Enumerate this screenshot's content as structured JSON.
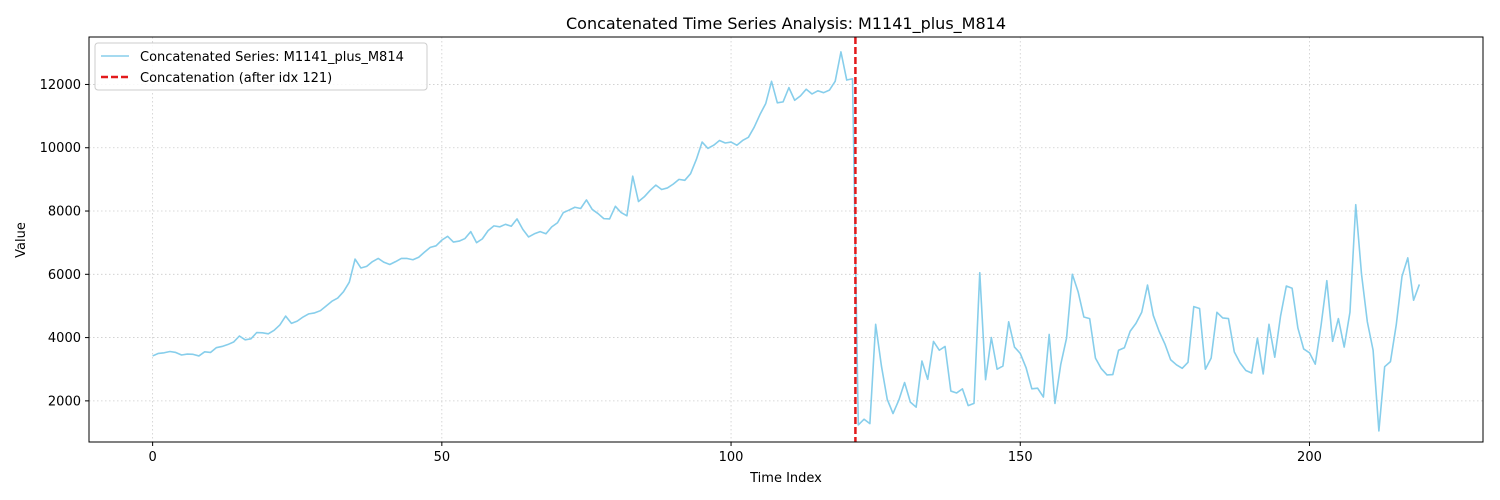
{
  "chart_data": {
    "type": "line",
    "title": "Concatenated Time Series Analysis: M1141_plus_M814",
    "xlabel": "Time Index",
    "ylabel": "Value",
    "xlim": [
      -11,
      230
    ],
    "ylim": [
      700,
      13500
    ],
    "xticks": [
      0,
      50,
      100,
      150,
      200
    ],
    "yticks": [
      2000,
      4000,
      6000,
      8000,
      10000,
      12000
    ],
    "grid": true,
    "legend_position": "top-left",
    "series": [
      {
        "name": "Concatenated Series: M1141_plus_M814",
        "color": "#87ceeb",
        "x": [
          0,
          1,
          2,
          3,
          4,
          5,
          6,
          7,
          8,
          9,
          10,
          11,
          12,
          13,
          14,
          15,
          16,
          17,
          18,
          19,
          20,
          21,
          22,
          23,
          24,
          25,
          26,
          27,
          28,
          29,
          30,
          31,
          32,
          33,
          34,
          35,
          36,
          37,
          38,
          39,
          40,
          41,
          42,
          43,
          44,
          45,
          46,
          47,
          48,
          49,
          50,
          51,
          52,
          53,
          54,
          55,
          56,
          57,
          58,
          59,
          60,
          61,
          62,
          63,
          64,
          65,
          66,
          67,
          68,
          69,
          70,
          71,
          72,
          73,
          74,
          75,
          76,
          77,
          78,
          79,
          80,
          81,
          82,
          83,
          84,
          85,
          86,
          87,
          88,
          89,
          90,
          91,
          92,
          93,
          94,
          95,
          96,
          97,
          98,
          99,
          100,
          101,
          102,
          103,
          104,
          105,
          106,
          107,
          108,
          109,
          110,
          111,
          112,
          113,
          114,
          115,
          116,
          117,
          118,
          119,
          120,
          121,
          122,
          123,
          124,
          125,
          126,
          127,
          128,
          129,
          130,
          131,
          132,
          133,
          134,
          135,
          136,
          137,
          138,
          139,
          140,
          141,
          142,
          143,
          144,
          145,
          146,
          147,
          148,
          149,
          150,
          151,
          152,
          153,
          154,
          155,
          156,
          157,
          158,
          159,
          160,
          161,
          162,
          163,
          164,
          165,
          166,
          167,
          168,
          169,
          170,
          171,
          172,
          173,
          174,
          175,
          176,
          177,
          178,
          179,
          180,
          181,
          182,
          183,
          184,
          185,
          186,
          187,
          188,
          189,
          190,
          191,
          192,
          193,
          194,
          195,
          196,
          197,
          198,
          199,
          200,
          201,
          202,
          203,
          204,
          205,
          206,
          207,
          208,
          209,
          210,
          211,
          212,
          213,
          214,
          215,
          216,
          217,
          218,
          219
        ],
        "values": [
          3420,
          3500,
          3520,
          3560,
          3530,
          3450,
          3480,
          3470,
          3420,
          3550,
          3530,
          3680,
          3720,
          3780,
          3860,
          4050,
          3930,
          3960,
          4160,
          4150,
          4120,
          4230,
          4400,
          4680,
          4450,
          4520,
          4650,
          4750,
          4780,
          4850,
          5000,
          5150,
          5250,
          5450,
          5750,
          6480,
          6200,
          6250,
          6400,
          6500,
          6380,
          6310,
          6400,
          6500,
          6500,
          6460,
          6540,
          6700,
          6850,
          6900,
          7080,
          7200,
          7020,
          7050,
          7130,
          7350,
          7000,
          7120,
          7380,
          7530,
          7500,
          7580,
          7520,
          7750,
          7420,
          7180,
          7280,
          7350,
          7280,
          7500,
          7630,
          7950,
          8030,
          8120,
          8080,
          8350,
          8050,
          7920,
          7760,
          7750,
          8150,
          7950,
          7850,
          9100,
          8300,
          8450,
          8650,
          8820,
          8680,
          8730,
          8850,
          9000,
          8970,
          9180,
          9630,
          10180,
          9980,
          10080,
          10230,
          10150,
          10180,
          10080,
          10230,
          10330,
          10650,
          11050,
          11400,
          12100,
          11420,
          11450,
          11900,
          11500,
          11640,
          11850,
          11700,
          11800,
          11740,
          11820,
          12100,
          13030,
          12140,
          12180,
          1240,
          1420,
          1280,
          4420,
          3100,
          2050,
          1600,
          2020,
          2580,
          1960,
          1800,
          3260,
          2680,
          3880,
          3600,
          3720,
          2310,
          2250,
          2380,
          1850,
          1920,
          6050,
          2670,
          4000,
          3000,
          3100,
          4500,
          3700,
          3500,
          3050,
          2380,
          2400,
          2120,
          4100,
          1920,
          3150,
          3980,
          6000,
          5450,
          4650,
          4600,
          3350,
          3020,
          2820,
          2830,
          3600,
          3680,
          4200,
          4450,
          4800,
          5660,
          4700,
          4200,
          3800,
          3300,
          3140,
          3030,
          3220,
          4980,
          4920,
          3000,
          3350,
          4800,
          4620,
          4600,
          3550,
          3200,
          2960,
          2880,
          3980,
          2850,
          4420,
          3380,
          4680,
          5630,
          5560,
          4300,
          3640,
          3520,
          3160,
          4380,
          5800,
          3880,
          4600,
          3700,
          4800,
          8200,
          6000,
          4500,
          3600,
          1050,
          3080,
          3240,
          4400,
          5940,
          6520,
          5180,
          5680
        ]
      }
    ],
    "annotations": [
      {
        "type": "vline",
        "x": 121.5,
        "color": "#e31a1c",
        "style": "dashed",
        "label": "Concatenation (after idx 121)"
      }
    ]
  }
}
